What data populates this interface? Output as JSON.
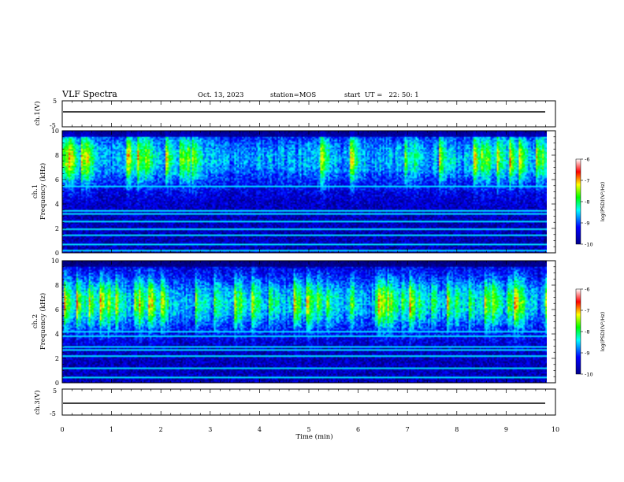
{
  "header": {
    "title": "VLF Spectra",
    "date": "Oct. 13, 2023",
    "station": "station=MOS",
    "start": "start  UT =   22: 50: 1"
  },
  "chart_data": [
    {
      "type": "line",
      "id": "ch1-voltage",
      "ylabel": "ch.1(V)",
      "ylim": [
        -5,
        5
      ],
      "yticks": [
        "5",
        "-5"
      ],
      "x": [
        0,
        9.8
      ],
      "values": [
        0,
        0
      ]
    },
    {
      "type": "heatmap",
      "id": "ch1-spectrogram",
      "ylabel_top": "ch.1",
      "ylabel": "Frequency (kHz)",
      "ylim": [
        0,
        10
      ],
      "yticks": [
        "0",
        "2",
        "4",
        "6",
        "8",
        "10"
      ],
      "colorbar": {
        "label": "log(PSD)(V²/Hz)",
        "range": [
          -10,
          -6
        ],
        "ticks": [
          "-6",
          "-7",
          "-8",
          "-9",
          "-10"
        ]
      }
    },
    {
      "type": "heatmap",
      "id": "ch2-spectrogram",
      "ylabel_top": "ch.2",
      "ylabel": "Frequency (kHz)",
      "ylim": [
        0,
        10
      ],
      "yticks": [
        "0",
        "2",
        "4",
        "6",
        "8",
        "10"
      ],
      "colorbar": {
        "label": "log(PSD)(V²/Hz)",
        "range": [
          -10,
          -6
        ],
        "ticks": [
          "-6",
          "-7",
          "-8",
          "-9",
          "-10"
        ]
      }
    },
    {
      "type": "line",
      "id": "ch3-voltage",
      "ylabel": "ch.3(V)",
      "ylim": [
        -5,
        5
      ],
      "yticks": [
        "5",
        "-5"
      ],
      "x": [
        0,
        9.8
      ],
      "values": [
        0,
        0
      ]
    }
  ],
  "xaxis": {
    "label": "Time (min)",
    "xlim": [
      0,
      10
    ],
    "ticks": [
      "0",
      "1",
      "2",
      "3",
      "4",
      "5",
      "6",
      "7",
      "8",
      "9",
      "10"
    ]
  }
}
